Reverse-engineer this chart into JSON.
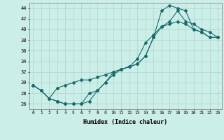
{
  "xlabel": "Humidex (Indice chaleur)",
  "bg_color": "#cceee8",
  "grid_color": "#aad4ce",
  "line_color": "#1a6b6b",
  "xlim": [
    -0.5,
    23.5
  ],
  "ylim": [
    25,
    45
  ],
  "yticks": [
    26,
    28,
    30,
    32,
    34,
    36,
    38,
    40,
    42,
    44
  ],
  "xticks": [
    0,
    1,
    2,
    3,
    4,
    5,
    6,
    7,
    8,
    9,
    10,
    11,
    12,
    13,
    14,
    15,
    16,
    17,
    18,
    19,
    20,
    21,
    22,
    23
  ],
  "line1_x": [
    0,
    1,
    2,
    3,
    4,
    5,
    6,
    7,
    8,
    9,
    10,
    11,
    12,
    13,
    14,
    15,
    16,
    17,
    18,
    19,
    20,
    21,
    22,
    23
  ],
  "line1_y": [
    29.5,
    28.5,
    27.0,
    26.5,
    26.0,
    26.0,
    26.0,
    26.5,
    28.5,
    30.0,
    32.0,
    32.5,
    33.0,
    33.5,
    35.0,
    38.5,
    43.5,
    44.5,
    44.0,
    43.5,
    40.0,
    39.5,
    38.5,
    38.5
  ],
  "line2_x": [
    0,
    1,
    2,
    3,
    4,
    5,
    6,
    7,
    8,
    9,
    10,
    11,
    12,
    13,
    14,
    15,
    16,
    17,
    18,
    19,
    20,
    21,
    22,
    23
  ],
  "line2_y": [
    29.5,
    28.5,
    27.0,
    29.0,
    29.5,
    30.0,
    30.5,
    30.5,
    31.0,
    31.5,
    32.0,
    32.5,
    33.0,
    33.5,
    35.0,
    38.5,
    40.5,
    41.0,
    41.5,
    41.0,
    40.0,
    39.5,
    38.5,
    38.5
  ],
  "line3_x": [
    0,
    1,
    2,
    3,
    4,
    5,
    6,
    7,
    8,
    9,
    10,
    11,
    12,
    13,
    14,
    15,
    16,
    17,
    18,
    19,
    20,
    21,
    22,
    23
  ],
  "line3_y": [
    29.5,
    28.5,
    27.0,
    26.5,
    26.0,
    26.0,
    26.0,
    28.0,
    28.5,
    30.0,
    31.5,
    32.5,
    33.0,
    34.5,
    37.5,
    39.0,
    40.5,
    41.5,
    43.5,
    41.5,
    41.0,
    40.0,
    39.5,
    38.5
  ]
}
